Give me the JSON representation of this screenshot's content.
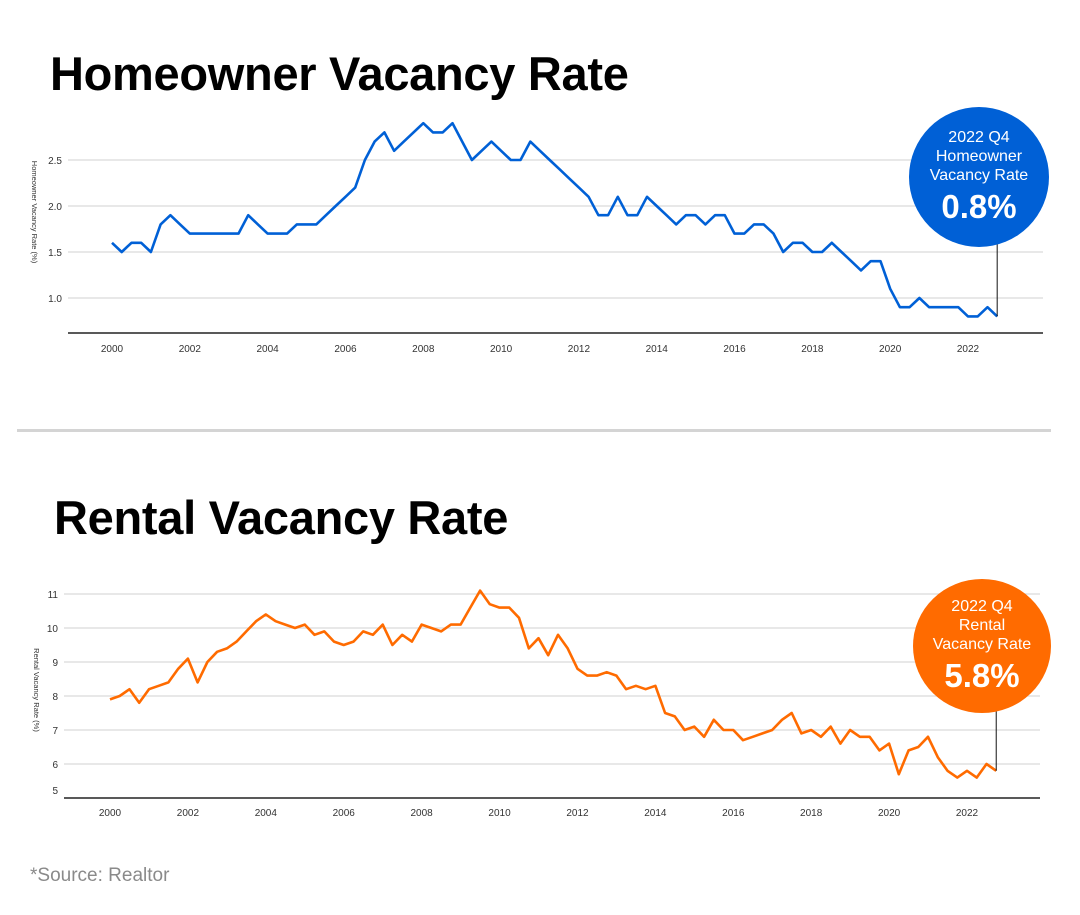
{
  "source": "*Source: Realtor",
  "chart_data": [
    {
      "type": "line",
      "title": "Homeowner Vacancy Rate",
      "ylabel": "Homeowner Vacancy Rate (%)",
      "xlabel": "",
      "x_tick_labels": [
        "2000",
        "2002",
        "2004",
        "2006",
        "2008",
        "2010",
        "2012",
        "2014",
        "2016",
        "2018",
        "2020",
        "2022"
      ],
      "y_tick_labels": [
        "1.0",
        "1.5",
        "2.0",
        "2.5"
      ],
      "ylim": [
        0.62,
        2.95
      ],
      "xlim": [
        1999,
        2024
      ],
      "grid": true,
      "color": "#0060d6",
      "x_start": "2000 Q1",
      "x_step": "quarter",
      "values": [
        1.6,
        1.5,
        1.6,
        1.6,
        1.5,
        1.8,
        1.9,
        1.8,
        1.7,
        1.7,
        1.7,
        1.7,
        1.7,
        1.7,
        1.9,
        1.8,
        1.7,
        1.7,
        1.7,
        1.8,
        1.8,
        1.8,
        1.9,
        2.0,
        2.1,
        2.2,
        2.5,
        2.7,
        2.8,
        2.6,
        2.7,
        2.8,
        2.9,
        2.8,
        2.8,
        2.9,
        2.7,
        2.5,
        2.6,
        2.7,
        2.6,
        2.5,
        2.5,
        2.7,
        2.6,
        2.5,
        2.4,
        2.3,
        2.2,
        2.1,
        1.9,
        1.9,
        2.1,
        1.9,
        1.9,
        2.1,
        2.0,
        1.9,
        1.8,
        1.9,
        1.9,
        1.8,
        1.9,
        1.9,
        1.7,
        1.7,
        1.8,
        1.8,
        1.7,
        1.5,
        1.6,
        1.6,
        1.5,
        1.5,
        1.6,
        1.5,
        1.4,
        1.3,
        1.4,
        1.4,
        1.1,
        0.9,
        0.9,
        1.0,
        0.9,
        0.9,
        0.9,
        0.9,
        0.8,
        0.8,
        0.9,
        0.8
      ],
      "callout": {
        "label_lines": [
          "2022 Q4",
          "Homeowner",
          "Vacancy Rate"
        ],
        "value": "0.8%"
      }
    },
    {
      "type": "line",
      "title": "Rental Vacancy Rate",
      "ylabel": "Rental Vacancy Rate (%)",
      "xlabel": "",
      "x_tick_labels": [
        "2000",
        "2002",
        "2004",
        "2006",
        "2008",
        "2010",
        "2012",
        "2014",
        "2016",
        "2018",
        "2020",
        "2022"
      ],
      "y_tick_labels": [
        "5",
        "6",
        "7",
        "8",
        "9",
        "10",
        "11"
      ],
      "ylim": [
        5,
        11.3
      ],
      "xlim": [
        1999,
        2024
      ],
      "grid": true,
      "color": "#ff6b00",
      "x_start": "2000 Q1",
      "x_step": "quarter",
      "values": [
        7.9,
        8.0,
        8.2,
        7.8,
        8.2,
        8.3,
        8.4,
        8.8,
        9.1,
        8.4,
        9.0,
        9.3,
        9.4,
        9.6,
        9.9,
        10.2,
        10.4,
        10.2,
        10.1,
        10.0,
        10.1,
        9.8,
        9.9,
        9.6,
        9.5,
        9.6,
        9.9,
        9.8,
        10.1,
        9.5,
        9.8,
        9.6,
        10.1,
        10.0,
        9.9,
        10.1,
        10.1,
        10.6,
        11.1,
        10.7,
        10.6,
        10.6,
        10.3,
        9.4,
        9.7,
        9.2,
        9.8,
        9.4,
        8.8,
        8.6,
        8.6,
        8.7,
        8.6,
        8.2,
        8.3,
        8.2,
        8.3,
        7.5,
        7.4,
        7.0,
        7.1,
        6.8,
        7.3,
        7.0,
        7.0,
        6.7,
        6.8,
        6.9,
        7.0,
        7.3,
        7.5,
        6.9,
        7.0,
        6.8,
        7.1,
        6.6,
        7.0,
        6.8,
        6.8,
        6.4,
        6.6,
        5.7,
        6.4,
        6.5,
        6.8,
        6.2,
        5.8,
        5.6,
        5.8,
        5.6,
        6.0,
        5.8
      ],
      "callout": {
        "label_lines": [
          "2022 Q4",
          "Rental",
          "Vacancy Rate"
        ],
        "value": "5.8%"
      }
    }
  ]
}
